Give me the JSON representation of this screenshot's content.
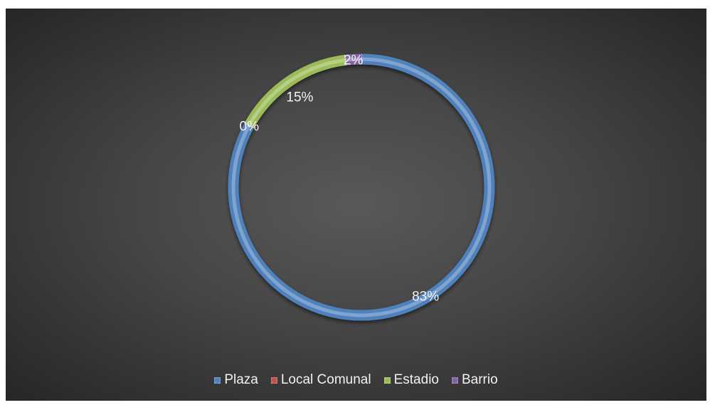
{
  "chart_data": {
    "type": "pie",
    "subtype": "donut",
    "categories": [
      "Plaza",
      "Local Comunal",
      "Estadio",
      "Barrio"
    ],
    "values": [
      83,
      0,
      15,
      2
    ],
    "data_labels": [
      "83%",
      "0%",
      "15%",
      "2%"
    ],
    "colors": [
      "#4f81bd",
      "#c0504d",
      "#9bbb59",
      "#8064a2"
    ],
    "legend_position": "bottom",
    "background": "#404040"
  }
}
